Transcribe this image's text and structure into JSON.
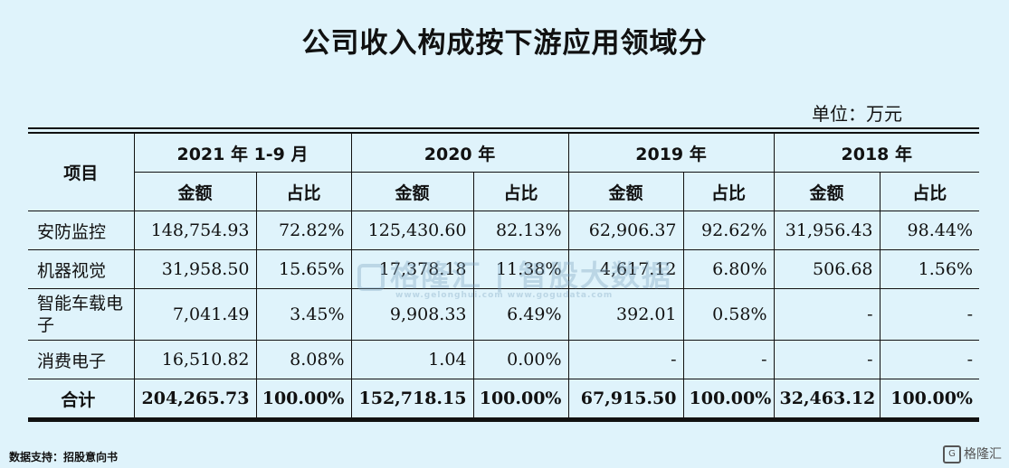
{
  "title": "公司收入构成按下游应用领域分",
  "unit": "单位：万元",
  "header": {
    "item": "项目",
    "years": [
      "2021 年 1-9 月",
      "2020 年",
      "2019 年",
      "2018 年"
    ],
    "amount": "金额",
    "ratio": "占比"
  },
  "rows": [
    {
      "name": "安防监控",
      "v": [
        "148,754.93",
        "72.82%",
        "125,430.60",
        "82.13%",
        "62,906.37",
        "92.62%",
        "31,956.43",
        "98.44%"
      ]
    },
    {
      "name": "机器视觉",
      "v": [
        "31,958.50",
        "15.65%",
        "17,378.18",
        "11.38%",
        "4,617.12",
        "6.80%",
        "506.68",
        "1.56%"
      ]
    },
    {
      "name": "智能车载电子",
      "v": [
        "7,041.49",
        "3.45%",
        "9,908.33",
        "6.49%",
        "392.01",
        "0.58%",
        "-",
        "-"
      ]
    },
    {
      "name": "消费电子",
      "v": [
        "16,510.82",
        "8.08%",
        "1.04",
        "0.00%",
        "-",
        "-",
        "-",
        "-"
      ]
    }
  ],
  "total": {
    "name": "合计",
    "v": [
      "204,265.73",
      "100.00%",
      "152,718.15",
      "100.00%",
      "67,915.50",
      "100.00%",
      "32,463.12",
      "100.00%"
    ]
  },
  "watermark": {
    "main": "格隆汇 | 智股大数据",
    "sub": "www.gelonghui.com  www.gogudata.com"
  },
  "source": "数据支持：招股意向书",
  "brand": {
    "icon": "G",
    "text": "格隆汇"
  }
}
